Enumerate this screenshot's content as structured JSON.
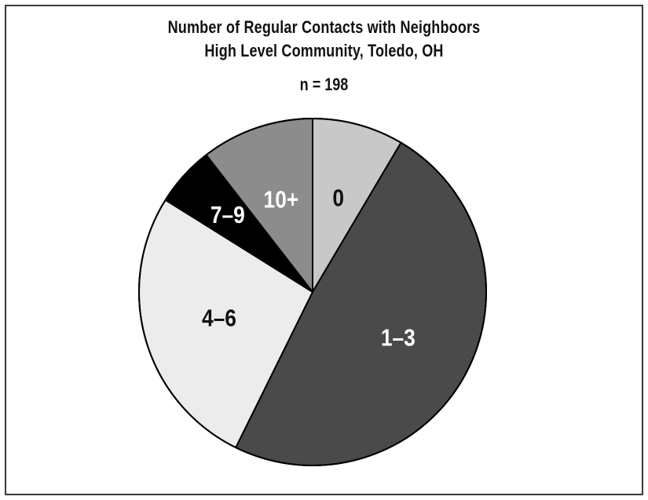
{
  "title_line1": "Number of Regular Contacts with Neighboors",
  "title_line2": "High Level Community, Toledo, OH",
  "n_label": "n = 198",
  "chart_data": {
    "type": "pie",
    "title": "Number of Regular Contacts with Neighboors High Level Community, Toledo, OH",
    "subtitle": "n = 198",
    "start_angle_deg": 0,
    "direction": "clockwise",
    "slices": [
      {
        "label": "0",
        "value": 8.5,
        "color": "#c8c8c8",
        "label_color": "#111111"
      },
      {
        "label": "1–3",
        "value": 48.8,
        "color": "#4a4a4a",
        "label_color": "#ffffff"
      },
      {
        "label": "4–6",
        "value": 26.6,
        "color": "#ececec",
        "label_color": "#111111"
      },
      {
        "label": "7–9",
        "value": 5.6,
        "color": "#000000",
        "label_color": "#ffffff"
      },
      {
        "label": "10+",
        "value": 10.5,
        "color": "#8c8c8c",
        "label_color": "#ffffff"
      }
    ]
  }
}
